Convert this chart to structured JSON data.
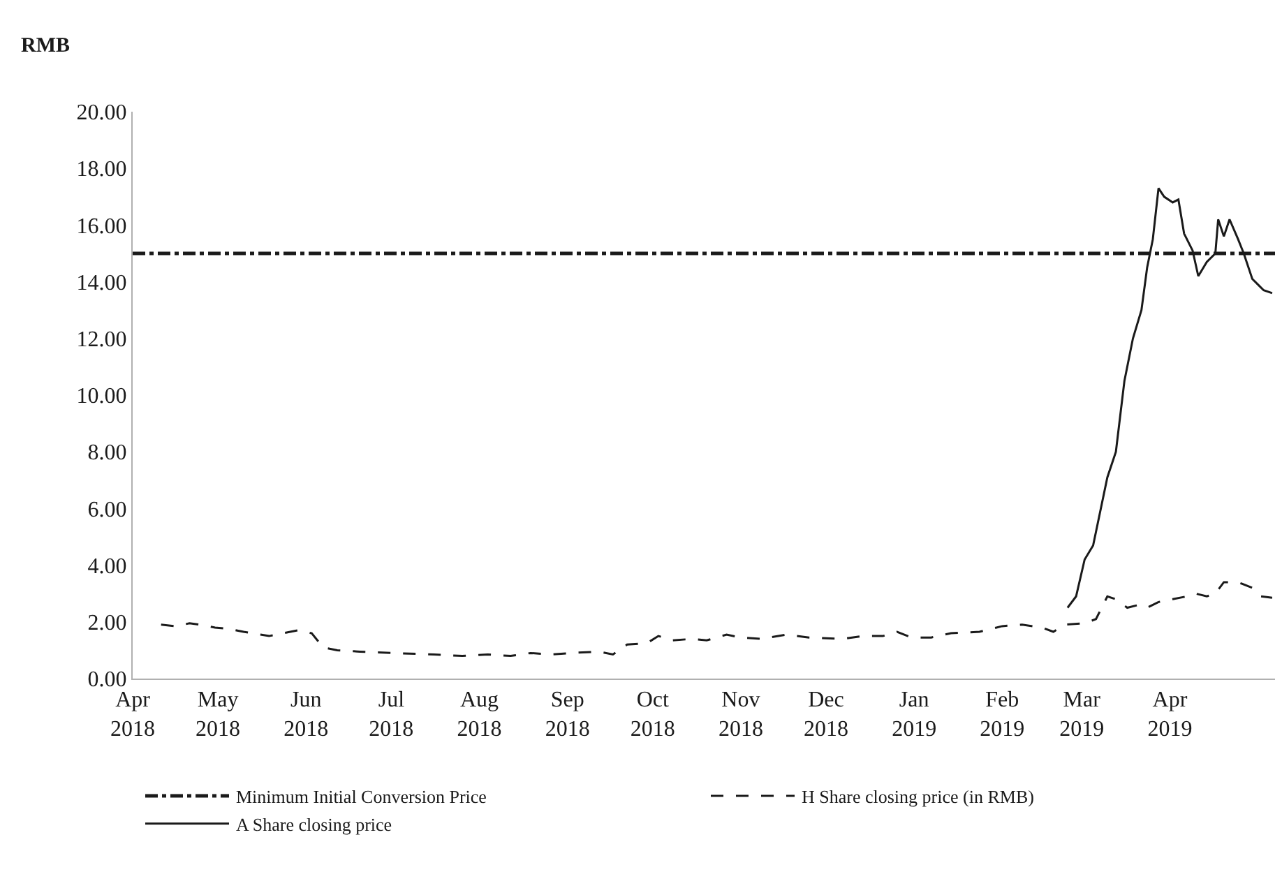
{
  "chart_data": {
    "type": "line",
    "ylabel": "RMB",
    "xlim": [
      "2018-04-01",
      "2019-05-08"
    ],
    "xticks": [
      {
        "value": "2018-04-01",
        "label": "Apr\n2018"
      },
      {
        "value": "2018-05-01",
        "label": "May\n2018"
      },
      {
        "value": "2018-06-01",
        "label": "Jun\n2018"
      },
      {
        "value": "2018-07-01",
        "label": "Jul\n2018"
      },
      {
        "value": "2018-08-01",
        "label": "Aug\n2018"
      },
      {
        "value": "2018-09-01",
        "label": "Sep\n2018"
      },
      {
        "value": "2018-10-01",
        "label": "Oct\n2018"
      },
      {
        "value": "2018-11-01",
        "label": "Nov\n2018"
      },
      {
        "value": "2018-12-01",
        "label": "Dec\n2018"
      },
      {
        "value": "2019-01-01",
        "label": "Jan\n2019"
      },
      {
        "value": "2019-02-01",
        "label": "Feb\n2019"
      },
      {
        "value": "2019-03-01",
        "label": "Mar\n2019"
      },
      {
        "value": "2019-04-01",
        "label": "Apr\n2019"
      }
    ],
    "ylim": [
      0,
      20
    ],
    "yticks": [
      {
        "value": 0,
        "label": "0.00"
      },
      {
        "value": 2,
        "label": "2.00"
      },
      {
        "value": 4,
        "label": "4.00"
      },
      {
        "value": 6,
        "label": "6.00"
      },
      {
        "value": 8,
        "label": "8.00"
      },
      {
        "value": 10,
        "label": "10.00"
      },
      {
        "value": 12,
        "label": "12.00"
      },
      {
        "value": 14,
        "label": "14.00"
      },
      {
        "value": 16,
        "label": "16.00"
      },
      {
        "value": 18,
        "label": "18.00"
      },
      {
        "value": 20,
        "label": "20.00"
      }
    ],
    "legend": "bottom",
    "ref_lines": [
      {
        "axis": "y",
        "value": 15,
        "label": "Minimum Initial Conversion Price",
        "color": "#1a1a1a",
        "line_style": "dashdot"
      }
    ],
    "series": [
      {
        "name": "H Share closing price (in RMB)",
        "color": "#1a1a1a",
        "line_style": "dashed",
        "x": [
          "2018-04-11",
          "2018-04-16",
          "2018-04-21",
          "2018-04-25",
          "2018-04-30",
          "2018-05-05",
          "2018-05-10",
          "2018-05-16",
          "2018-05-19",
          "2018-05-24",
          "2018-05-29",
          "2018-06-03",
          "2018-06-07",
          "2018-06-12",
          "2018-06-20",
          "2018-07-02",
          "2018-07-16",
          "2018-07-26",
          "2018-08-04",
          "2018-08-12",
          "2018-08-19",
          "2018-08-26",
          "2018-09-02",
          "2018-09-12",
          "2018-09-17",
          "2018-09-22",
          "2018-09-29",
          "2018-10-03",
          "2018-10-08",
          "2018-10-15",
          "2018-10-20",
          "2018-10-27",
          "2018-11-01",
          "2018-11-08",
          "2018-11-17",
          "2018-11-25",
          "2018-12-07",
          "2018-12-14",
          "2018-12-21",
          "2018-12-26",
          "2018-12-31",
          "2019-01-07",
          "2019-01-14",
          "2019-01-24",
          "2019-02-01",
          "2019-02-08",
          "2019-02-15",
          "2019-02-19",
          "2019-02-23",
          "2019-03-02",
          "2019-03-06",
          "2019-03-10",
          "2019-03-13",
          "2019-03-17",
          "2019-03-21",
          "2019-03-24",
          "2019-03-28",
          "2019-04-02",
          "2019-04-07",
          "2019-04-10",
          "2019-04-14",
          "2019-04-17",
          "2019-04-20",
          "2019-04-25",
          "2019-04-30",
          "2019-05-03",
          "2019-05-07"
        ],
        "values": [
          1.9,
          1.85,
          1.95,
          1.9,
          1.8,
          1.75,
          1.65,
          1.55,
          1.5,
          1.6,
          1.7,
          1.6,
          1.1,
          1.0,
          0.95,
          0.9,
          0.85,
          0.8,
          0.85,
          0.8,
          0.9,
          0.85,
          0.9,
          0.95,
          0.85,
          1.2,
          1.25,
          1.5,
          1.35,
          1.4,
          1.35,
          1.55,
          1.45,
          1.4,
          1.55,
          1.45,
          1.4,
          1.5,
          1.5,
          1.65,
          1.45,
          1.45,
          1.6,
          1.65,
          1.85,
          1.9,
          1.8,
          1.65,
          1.9,
          1.95,
          2.1,
          2.9,
          2.8,
          2.5,
          2.6,
          2.5,
          2.7,
          2.8,
          2.9,
          3.0,
          2.9,
          3.0,
          3.4,
          3.4,
          3.2,
          2.9,
          2.85
        ]
      },
      {
        "name": "A Share closing price",
        "color": "#1a1a1a",
        "line_style": "solid",
        "x": [
          "2019-02-24",
          "2019-02-27",
          "2019-03-02",
          "2019-03-05",
          "2019-03-10",
          "2019-03-13",
          "2019-03-16",
          "2019-03-19",
          "2019-03-22",
          "2019-03-24",
          "2019-03-26",
          "2019-03-28",
          "2019-03-30",
          "2019-04-02",
          "2019-04-04",
          "2019-04-06",
          "2019-04-09",
          "2019-04-11",
          "2019-04-14",
          "2019-04-17",
          "2019-04-18",
          "2019-04-20",
          "2019-04-22",
          "2019-04-25",
          "2019-04-27",
          "2019-04-30",
          "2019-05-02",
          "2019-05-04",
          "2019-05-07"
        ],
        "values": [
          2.5,
          2.9,
          4.2,
          4.7,
          7.1,
          8.0,
          10.5,
          12.0,
          13.0,
          14.5,
          15.5,
          17.3,
          17.0,
          16.8,
          16.9,
          15.7,
          15.1,
          14.2,
          14.7,
          15.0,
          16.2,
          15.6,
          16.2,
          15.5,
          15.0,
          14.1,
          13.9,
          13.7,
          13.6
        ]
      }
    ]
  }
}
